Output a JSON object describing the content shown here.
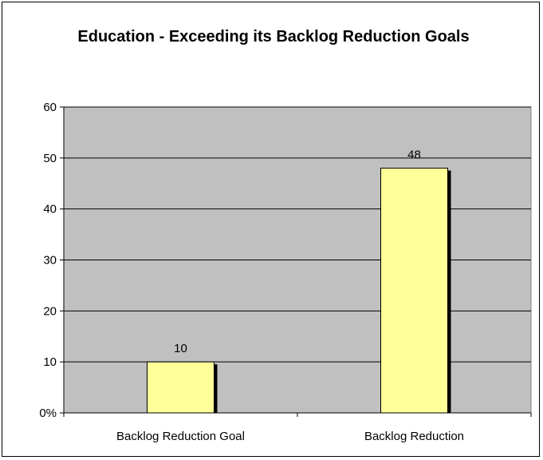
{
  "chart_data": {
    "type": "bar",
    "title": "Education - Exceeding its Backlog Reduction Goals",
    "categories": [
      "Backlog Reduction Goal",
      "Backlog Reduction"
    ],
    "values": [
      10,
      48
    ],
    "data_labels": [
      "10",
      "48"
    ],
    "ylim": [
      0,
      60
    ],
    "yticks": [
      0,
      10,
      20,
      30,
      40,
      50,
      60
    ],
    "ytick_labels": [
      "0%",
      "10",
      "20",
      "30",
      "40",
      "50",
      "60"
    ],
    "xlabel": "",
    "ylabel": "",
    "grid": true,
    "legend": "none",
    "colors": {
      "plot_background": "#c0c0c0",
      "bar_fill": "#ffff99",
      "bar_shadow": "#000000",
      "gridline": "#000000"
    }
  }
}
